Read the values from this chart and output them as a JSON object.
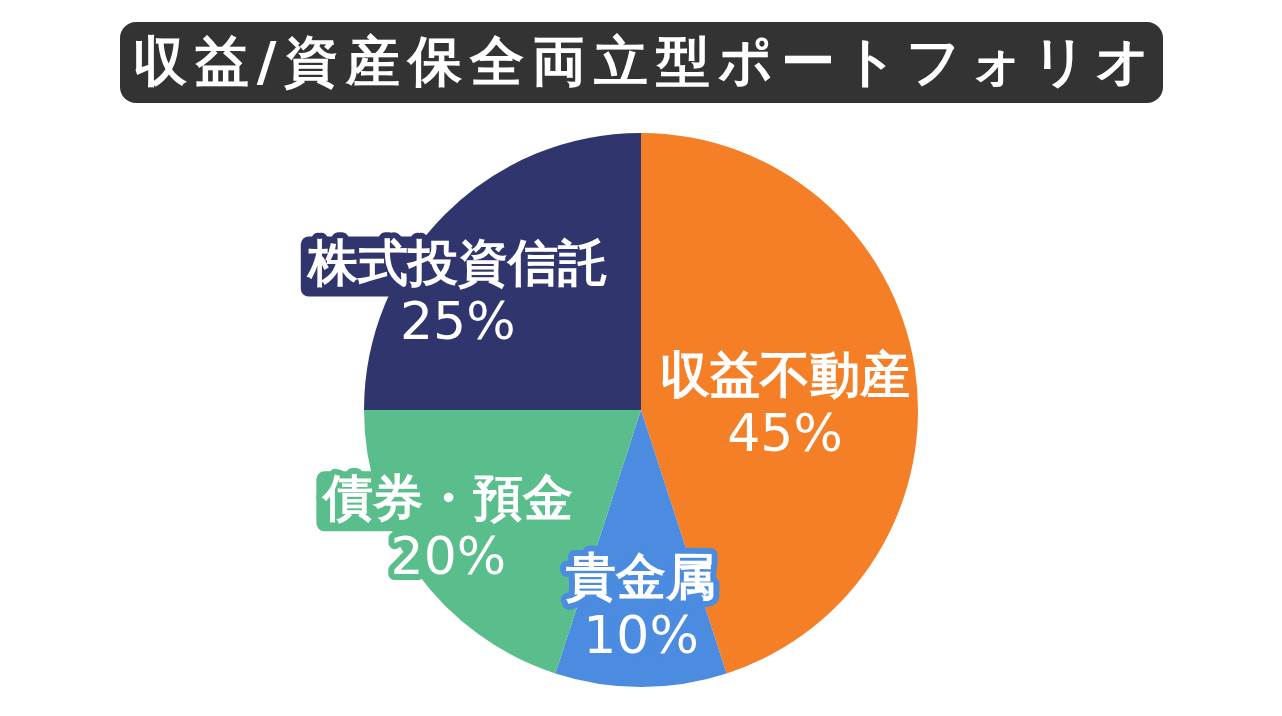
{
  "chart_data": {
    "type": "pie",
    "title": "収益/資産保全両立型ポートフォリオ",
    "categories": [
      "収益不動産",
      "貴金属",
      "債券・預金",
      "株式投資信託"
    ],
    "values": [
      45,
      10,
      20,
      25
    ],
    "value_labels": [
      "45%",
      "10%",
      "20%",
      "25%"
    ],
    "colors": [
      "#f47f26",
      "#4b8be0",
      "#5abe8c",
      "#30356d"
    ]
  }
}
